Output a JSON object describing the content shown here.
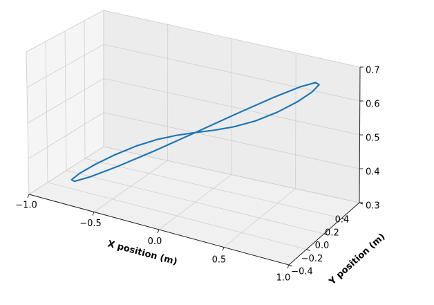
{
  "chart_data": {
    "type": "line3d",
    "xlabel": "X position (m)",
    "ylabel": "Y position (m)",
    "xlim": [
      -1.0,
      1.0
    ],
    "ylim": [
      -0.4,
      0.4
    ],
    "zlim": [
      0.3,
      0.7
    ],
    "xticks": [
      {
        "value": -1.0,
        "label": "−1.0"
      },
      {
        "value": -0.5,
        "label": "−0.5"
      },
      {
        "value": 0.0,
        "label": "0.0"
      },
      0.5,
      {
        "value": 1.0,
        "label": "1.0"
      }
    ],
    "yticks": [
      {
        "value": -0.4,
        "label": "−0.4"
      },
      {
        "value": -0.2,
        "label": "−0.2"
      },
      {
        "value": 0.0,
        "label": "0.0"
      },
      0.2,
      0.4
    ],
    "zticks": [
      0.3,
      0.4,
      0.5,
      0.6,
      0.7
    ],
    "grid": true,
    "series": [
      {
        "color": "#1f77b4",
        "x": [
          0.9,
          0.869,
          0.779,
          0.636,
          0.45,
          0.233,
          0,
          -0.233,
          -0.45,
          -0.636,
          -0.779,
          -0.869,
          -0.9,
          -0.869,
          -0.779,
          -0.636,
          -0.45,
          -0.233,
          0,
          0.233,
          0.45,
          0.636,
          0.779,
          0.869,
          0.9
        ],
        "y": [
          0,
          0.125,
          0.217,
          0.25,
          0.217,
          0.125,
          0,
          -0.125,
          -0.217,
          -0.25,
          -0.217,
          -0.125,
          0,
          0.125,
          0.217,
          0.25,
          0.217,
          0.125,
          0,
          -0.125,
          -0.217,
          -0.25,
          -0.217,
          -0.125,
          0
        ],
        "z": [
          0.7,
          0.693,
          0.673,
          0.641,
          0.6,
          0.552,
          0.5,
          0.448,
          0.4,
          0.359,
          0.327,
          0.307,
          0.3,
          0.307,
          0.327,
          0.359,
          0.4,
          0.448,
          0.5,
          0.552,
          0.6,
          0.641,
          0.673,
          0.693,
          0.7
        ]
      }
    ]
  }
}
